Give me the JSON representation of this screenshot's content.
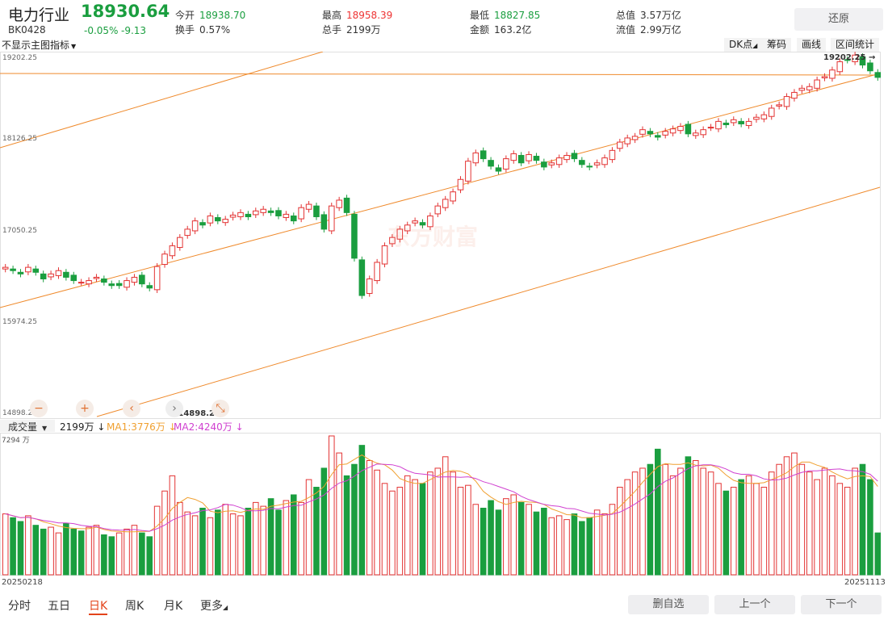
{
  "header": {
    "name": "电力行业",
    "price": "18930.64",
    "code": "BK0428",
    "change_pct": "-0.05%",
    "change": "-9.13",
    "stats": [
      {
        "label": "今开",
        "value": "18938.70",
        "color": "dn"
      },
      {
        "label": "最高",
        "value": "18958.39",
        "color": "up"
      },
      {
        "label": "最低",
        "value": "18827.85",
        "color": "dn"
      },
      {
        "label": "总值",
        "value": "3.57万亿",
        "color": ""
      },
      {
        "label": "换手",
        "value": "0.57%",
        "color": ""
      },
      {
        "label": "总手",
        "value": "2199万",
        "color": ""
      },
      {
        "label": "金额",
        "value": "163.2亿",
        "color": ""
      },
      {
        "label": "流值",
        "value": "2.99万亿",
        "color": ""
      }
    ],
    "restore_label": "还原"
  },
  "toolbar": {
    "indicator_select": "不显示主图指标",
    "buttons": [
      "DK点",
      "筹码",
      "画线",
      "区间统计"
    ]
  },
  "price_axis": [
    "19202.25",
    "18126.25",
    "17050.25",
    "15974.25",
    "14898.25"
  ],
  "annotations": {
    "high_label": "19202.25",
    "low_label": "14898.25",
    "watermark": "东方财富"
  },
  "volume": {
    "select": "成交量",
    "total": "2199万",
    "ma1": "MA1:3776万",
    "ma2": "MA2:4240万",
    "axis_top": "7294 万"
  },
  "dates": {
    "start": "20250218",
    "end": "20251113"
  },
  "bottom_tabs": [
    "分时",
    "五日",
    "日K",
    "周K",
    "月K",
    "更多"
  ],
  "bottom_active": "日K",
  "bottom_buttons": [
    "删自选",
    "上一个",
    "下一个"
  ],
  "colors": {
    "up": "#e33333",
    "down": "#1a9e3f",
    "channel": "#ef8a2c",
    "ma1": "#f0a030",
    "ma2": "#d040d0"
  },
  "chart_data": {
    "type": "bar",
    "note_series": "candlestick closes (daily K)",
    "ylim": [
      14898.25,
      19202.25
    ],
    "closes": [
      16640,
      16600,
      16560,
      16640,
      16580,
      16500,
      16560,
      16600,
      16520,
      16480,
      16460,
      16480,
      16520,
      16460,
      16420,
      16420,
      16480,
      16520,
      16440,
      16390,
      16650,
      16800,
      16900,
      17000,
      17100,
      17200,
      17150,
      17260,
      17200,
      17220,
      17270,
      17300,
      17250,
      17320,
      17340,
      17300,
      17260,
      17280,
      17200,
      17360,
      17400,
      17250,
      17100,
      17380,
      17450,
      17300,
      16750,
      16300,
      16500,
      16700,
      16900,
      17000,
      17100,
      17150,
      17200,
      17150,
      17260,
      17380,
      17460,
      17550,
      17700,
      17920,
      18020,
      17950,
      17860,
      17800,
      17950,
      18010,
      17900,
      18000,
      17930,
      17850,
      17900,
      17960,
      17990,
      17950,
      17880,
      17850,
      17900,
      17960,
      18050,
      18150,
      18200,
      18220,
      18300,
      18250,
      18210,
      18280,
      18310,
      18340,
      18250,
      18260,
      18300,
      18330,
      18400,
      18360,
      18420,
      18370,
      18400,
      18450,
      18480,
      18560,
      18600,
      18700,
      18750,
      18800,
      18820,
      18900,
      18940,
      19020,
      19120,
      19140,
      19200,
      19080,
      19010,
      18931
    ],
    "volume_wan": [
      3200,
      3000,
      2800,
      3100,
      2600,
      2400,
      2500,
      2200,
      2700,
      2400,
      2300,
      2500,
      2600,
      2100,
      2000,
      2200,
      2400,
      2600,
      2200,
      2000,
      3600,
      4400,
      5200,
      3800,
      3300,
      3100,
      3500,
      3000,
      3400,
      3700,
      3200,
      3100,
      3500,
      3800,
      3600,
      4000,
      3400,
      3900,
      4200,
      3800,
      5000,
      4600,
      5600,
      7294,
      6400,
      5200,
      5800,
      6800,
      6000,
      5500,
      4800,
      4400,
      4600,
      5200,
      5000,
      4800,
      5400,
      5600,
      6200,
      5400,
      4600,
      4700,
      3700,
      3500,
      3900,
      3400,
      4000,
      4200,
      3800,
      3700,
      3300,
      3500,
      3000,
      3100,
      2900,
      3200,
      2800,
      3000,
      3400,
      3200,
      3700,
      4600,
      5000,
      5400,
      5600,
      5800,
      6600,
      5800,
      5200,
      5600,
      6200,
      6000,
      5600,
      5400,
      4800,
      4400,
      4600,
      5000,
      5200,
      4800,
      4600,
      5400,
      5800,
      6200,
      6400,
      5800,
      5400,
      5000,
      5600,
      5200,
      4800,
      4600,
      5600,
      5800,
      5000,
      2199
    ]
  }
}
